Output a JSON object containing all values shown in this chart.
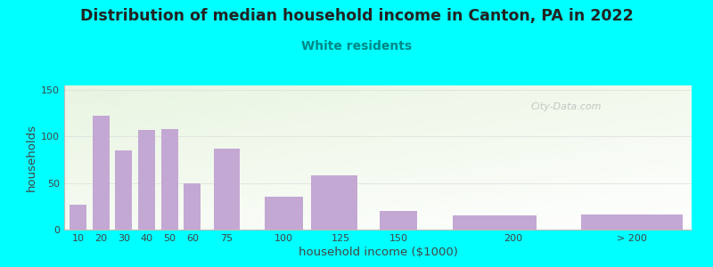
{
  "title": "Distribution of median household income in Canton, PA in 2022",
  "subtitle": "White residents",
  "xlabel": "household income ($1000)",
  "ylabel": "households",
  "bg_color": "#00FFFF",
  "bar_color": "#C4A8D4",
  "title_fontsize": 12.5,
  "title_color": "#222222",
  "subtitle_fontsize": 10,
  "subtitle_color": "#008888",
  "watermark": "City-Data.com",
  "values": [
    27,
    122,
    85,
    107,
    108,
    50,
    87,
    35,
    58,
    20,
    15,
    16
  ],
  "bar_centers": [
    10,
    20,
    30,
    40,
    50,
    60,
    75,
    100,
    122,
    150,
    192,
    252
  ],
  "bar_widths": [
    8,
    8,
    8,
    8,
    8,
    8,
    12,
    18,
    22,
    18,
    40,
    48
  ],
  "xlim": [
    4,
    278
  ],
  "ylim": [
    0,
    155
  ],
  "yticks": [
    0,
    50,
    100,
    150
  ],
  "xtick_positions": [
    10,
    20,
    30,
    40,
    50,
    60,
    75,
    100,
    125,
    150,
    200,
    252
  ],
  "xtick_labels": [
    "10",
    "20",
    "30",
    "40",
    "50",
    "60",
    "75",
    "100",
    "125",
    "150",
    "200",
    "> 200"
  ],
  "gradient_top_color": "#E8F5E0",
  "gradient_bottom_color": "#FFFFFF"
}
